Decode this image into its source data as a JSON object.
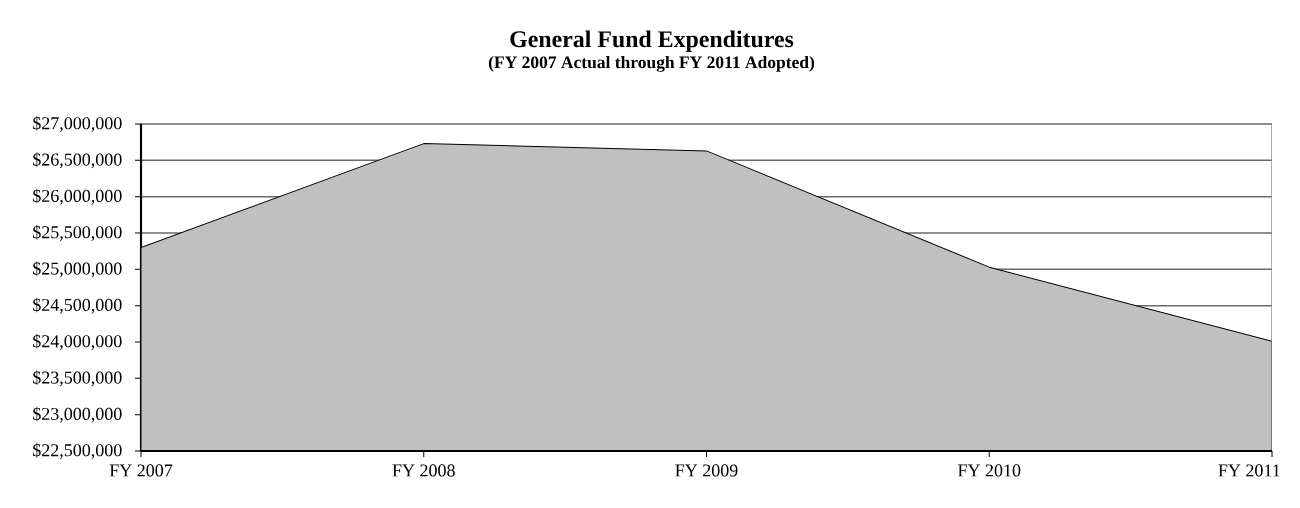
{
  "chart_data": {
    "type": "area",
    "title": "General Fund Expenditures",
    "subtitle": "(FY 2007 Actual through FY 2011 Adopted)",
    "categories": [
      "FY 2007",
      "FY 2008",
      "FY 2009",
      "FY 2010",
      "FY 2011"
    ],
    "series": [
      {
        "color": "#c0c0c0",
        "values": [
          25300000,
          26730000,
          26630000,
          25030000,
          24010000
        ]
      }
    ],
    "ylim": [
      22500000,
      27000000
    ],
    "yticks": [
      {
        "value": 22500000,
        "label": "$22,500,000"
      },
      {
        "value": 23000000,
        "label": "$23,000,000"
      },
      {
        "value": 23500000,
        "label": "$23,500,000"
      },
      {
        "value": 24000000,
        "label": "$24,000,000"
      },
      {
        "value": 24500000,
        "label": "$24,500,000"
      },
      {
        "value": 25000000,
        "label": "$25,000,000"
      },
      {
        "value": 25500000,
        "label": "$25,500,000"
      },
      {
        "value": 26000000,
        "label": "$26,000,000"
      },
      {
        "value": 26500000,
        "label": "$26,500,000"
      },
      {
        "value": 27000000,
        "label": "$27,000,000"
      }
    ],
    "grid": "y"
  }
}
